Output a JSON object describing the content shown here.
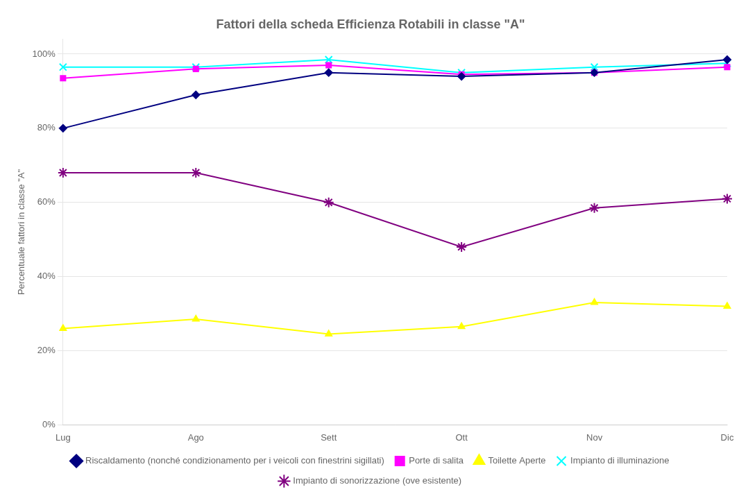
{
  "chart_data": {
    "type": "line",
    "title": "Fattori della scheda Efficienza Rotabili in classe \"A\"",
    "y_label": "Percentuale fattori in classe \"A\"",
    "categories": [
      "Lug",
      "Ago",
      "Sett",
      "Ott",
      "Nov",
      "Dic"
    ],
    "series": [
      {
        "name": "Riscaldamento (nonché condizionamento per i veicoli con finestrini sigillati)",
        "color": "#000080",
        "marker": "diamond",
        "values": [
          0.8,
          0.89,
          0.95,
          0.94,
          0.95,
          0.985
        ]
      },
      {
        "name": "Porte di salita",
        "color": "#FF00FF",
        "marker": "square",
        "values": [
          0.935,
          0.96,
          0.97,
          0.945,
          0.95,
          0.965
        ]
      },
      {
        "name": "Toilette Aperte",
        "color": "#FFFF00",
        "marker": "triangle",
        "values": [
          0.26,
          0.285,
          0.245,
          0.265,
          0.33,
          0.32
        ]
      },
      {
        "name": "Impianto di illuminazione",
        "color": "#00FFFF",
        "marker": "x",
        "values": [
          0.965,
          0.965,
          0.985,
          0.95,
          0.965,
          0.975
        ]
      },
      {
        "name": "Impianto di sonorizzazione (ove esistente)",
        "color": "#800080",
        "marker": "star",
        "values": [
          0.68,
          0.68,
          0.6,
          0.48,
          0.585,
          0.61
        ]
      }
    ],
    "ylim": [
      0,
      1.04
    ],
    "yticks": [
      {
        "value": 0.0,
        "label": "0%"
      },
      {
        "value": 0.2,
        "label": "20%"
      },
      {
        "value": 0.4,
        "label": "40%"
      },
      {
        "value": 0.6,
        "label": "60%"
      },
      {
        "value": 0.8,
        "label": "80%"
      },
      {
        "value": 1.0,
        "label": "100%"
      }
    ],
    "grid": true,
    "legend": "bottom"
  }
}
